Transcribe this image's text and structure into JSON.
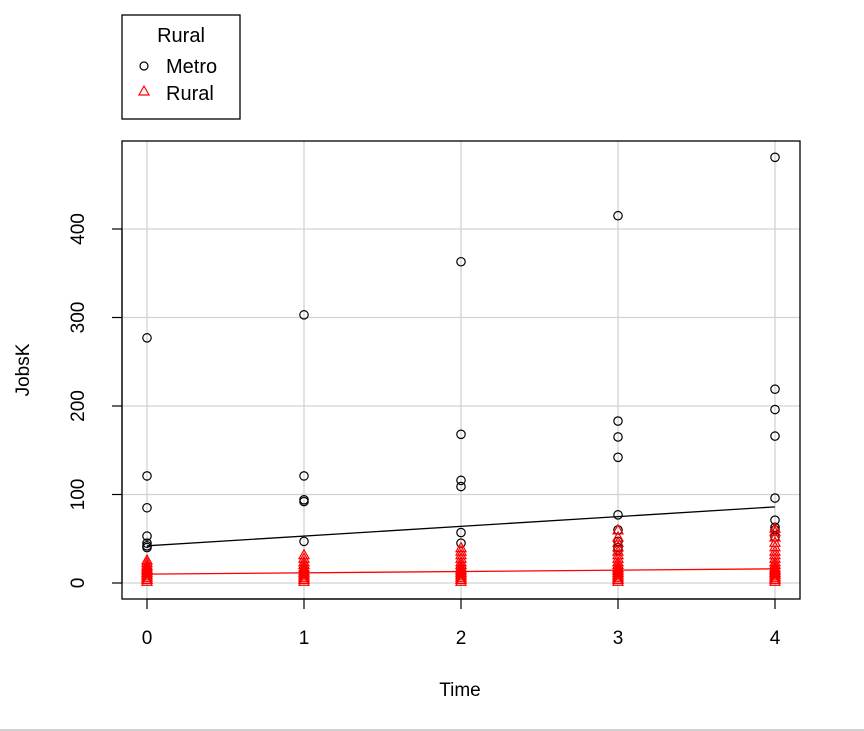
{
  "chart_data": {
    "type": "scatter",
    "xlabel": "Time",
    "ylabel": "JobsK",
    "xlim": [
      0,
      4
    ],
    "ylim": [
      0,
      480
    ],
    "x_ticks": [
      "0",
      "1",
      "2",
      "3",
      "4"
    ],
    "y_ticks": [
      "0",
      "100",
      "200",
      "300",
      "400"
    ],
    "grid": true,
    "legend": {
      "title": "Rural",
      "placement": "top-left outside",
      "entries": [
        {
          "label": "Metro",
          "marker": "circle",
          "color": "#000000"
        },
        {
          "label": "Rural",
          "marker": "triangle",
          "color": "#ff0000"
        }
      ]
    },
    "series": [
      {
        "name": "Metro",
        "marker": "circle",
        "color": "#000000",
        "points": [
          [
            0,
            277
          ],
          [
            0,
            121
          ],
          [
            0,
            85
          ],
          [
            0,
            53
          ],
          [
            0,
            45
          ],
          [
            0,
            42
          ],
          [
            0,
            40
          ],
          [
            1,
            303
          ],
          [
            1,
            121
          ],
          [
            1,
            94
          ],
          [
            1,
            92
          ],
          [
            1,
            47
          ],
          [
            2,
            363
          ],
          [
            2,
            168
          ],
          [
            2,
            116
          ],
          [
            2,
            109
          ],
          [
            2,
            57
          ],
          [
            2,
            45
          ],
          [
            3,
            415
          ],
          [
            3,
            183
          ],
          [
            3,
            165
          ],
          [
            3,
            142
          ],
          [
            3,
            77
          ],
          [
            3,
            60
          ],
          [
            3,
            47
          ],
          [
            3,
            40
          ],
          [
            3,
            37
          ],
          [
            4,
            481
          ],
          [
            4,
            219
          ],
          [
            4,
            196
          ],
          [
            4,
            166
          ],
          [
            4,
            96
          ],
          [
            4,
            71
          ],
          [
            4,
            63
          ],
          [
            4,
            60
          ],
          [
            4,
            52
          ]
        ],
        "trend": {
          "x": [
            0,
            4
          ],
          "y": [
            42,
            86
          ]
        }
      },
      {
        "name": "Rural",
        "marker": "triangle",
        "color": "#ff0000",
        "points": [
          [
            0,
            2
          ],
          [
            0,
            4
          ],
          [
            0,
            6
          ],
          [
            0,
            8
          ],
          [
            0,
            10
          ],
          [
            0,
            12
          ],
          [
            0,
            14
          ],
          [
            0,
            16
          ],
          [
            0,
            18
          ],
          [
            0,
            20
          ],
          [
            0,
            23
          ],
          [
            0,
            26
          ],
          [
            1,
            2
          ],
          [
            1,
            4
          ],
          [
            1,
            6
          ],
          [
            1,
            8
          ],
          [
            1,
            10
          ],
          [
            1,
            12
          ],
          [
            1,
            14
          ],
          [
            1,
            16
          ],
          [
            1,
            18
          ],
          [
            1,
            21
          ],
          [
            1,
            24
          ],
          [
            1,
            28
          ],
          [
            1,
            32
          ],
          [
            2,
            2
          ],
          [
            2,
            4
          ],
          [
            2,
            6
          ],
          [
            2,
            8
          ],
          [
            2,
            10
          ],
          [
            2,
            12
          ],
          [
            2,
            14
          ],
          [
            2,
            16
          ],
          [
            2,
            18
          ],
          [
            2,
            21
          ],
          [
            2,
            24
          ],
          [
            2,
            28
          ],
          [
            2,
            32
          ],
          [
            2,
            36
          ],
          [
            2,
            40
          ],
          [
            3,
            2
          ],
          [
            3,
            4
          ],
          [
            3,
            6
          ],
          [
            3,
            8
          ],
          [
            3,
            10
          ],
          [
            3,
            12
          ],
          [
            3,
            14
          ],
          [
            3,
            16
          ],
          [
            3,
            18
          ],
          [
            3,
            21
          ],
          [
            3,
            24
          ],
          [
            3,
            28
          ],
          [
            3,
            32
          ],
          [
            3,
            36
          ],
          [
            3,
            41
          ],
          [
            3,
            46
          ],
          [
            3,
            52
          ],
          [
            3,
            60
          ],
          [
            4,
            2
          ],
          [
            4,
            4
          ],
          [
            4,
            6
          ],
          [
            4,
            8
          ],
          [
            4,
            10
          ],
          [
            4,
            12
          ],
          [
            4,
            14
          ],
          [
            4,
            16
          ],
          [
            4,
            18
          ],
          [
            4,
            21
          ],
          [
            4,
            24
          ],
          [
            4,
            28
          ],
          [
            4,
            32
          ],
          [
            4,
            36
          ],
          [
            4,
            41
          ],
          [
            4,
            46
          ],
          [
            4,
            52
          ],
          [
            4,
            58
          ],
          [
            4,
            62
          ]
        ],
        "trend": {
          "x": [
            0,
            4
          ],
          "y": [
            10,
            16
          ]
        }
      }
    ]
  }
}
